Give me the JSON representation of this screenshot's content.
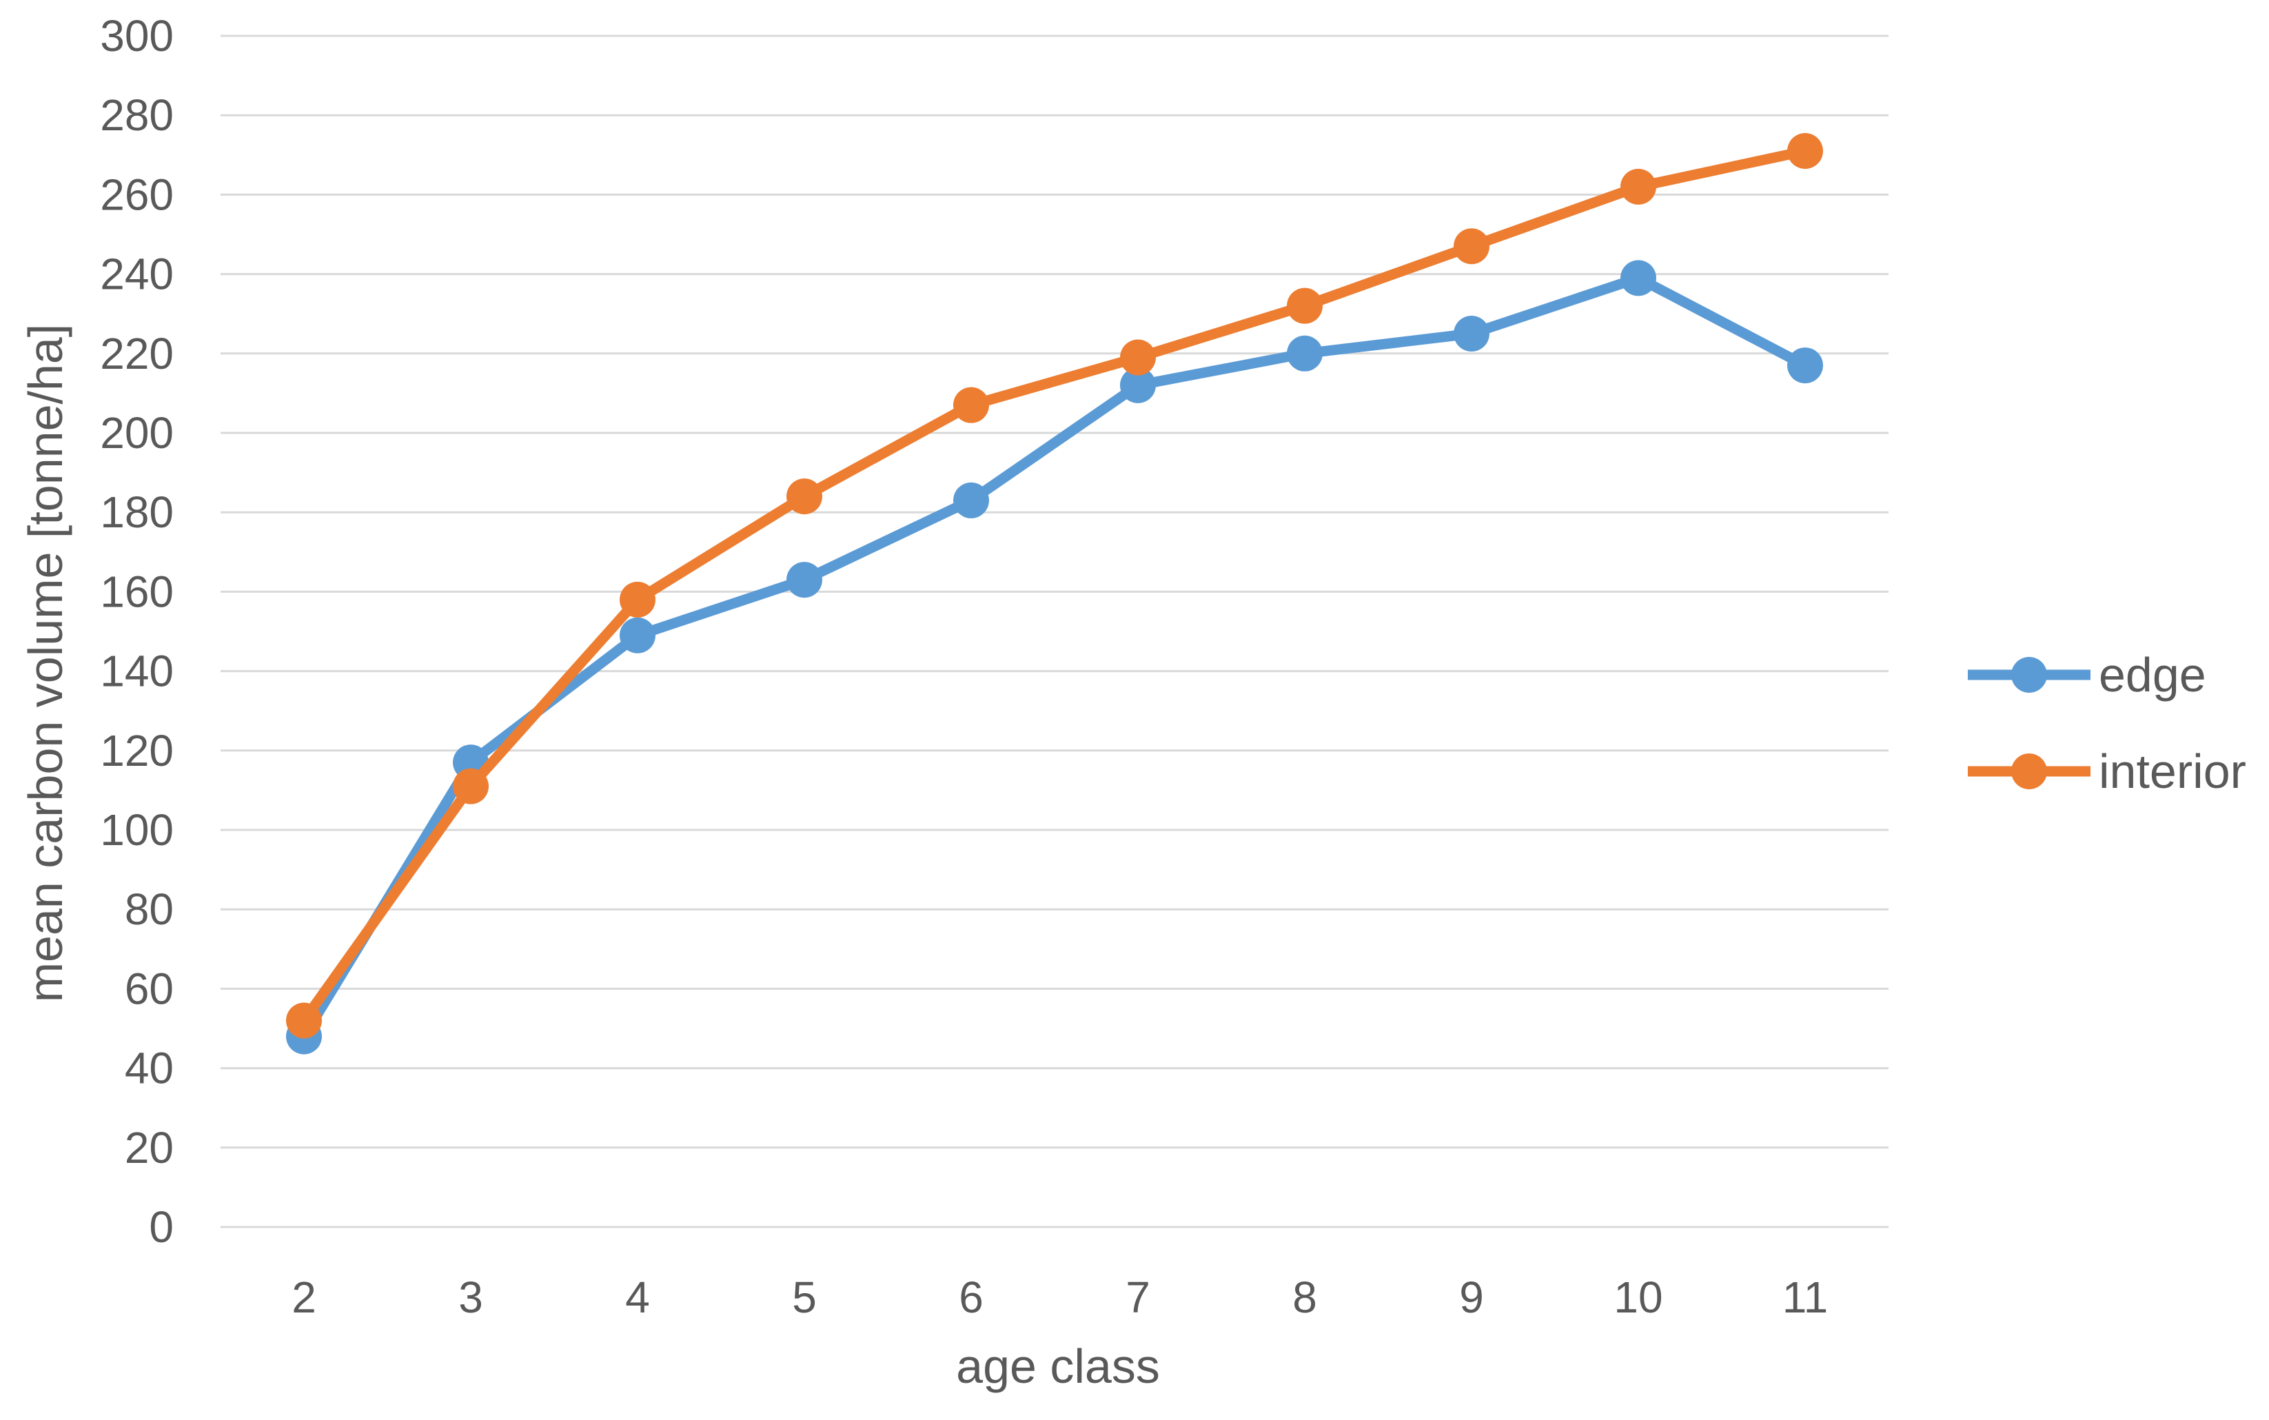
{
  "chart_data": {
    "type": "line",
    "title": "",
    "xlabel": "age class",
    "ylabel": "mean carbon volume [tonne/ha]",
    "categories": [
      "2",
      "3",
      "4",
      "5",
      "6",
      "7",
      "8",
      "9",
      "10",
      "11"
    ],
    "series": [
      {
        "name": "edge",
        "color": "#5B9BD5",
        "values": [
          48,
          117,
          149,
          163,
          183,
          212,
          220,
          225,
          239,
          217
        ]
      },
      {
        "name": "interior",
        "color": "#ED7D31",
        "values": [
          52,
          111,
          158,
          184,
          207,
          219,
          232,
          247,
          262,
          271
        ]
      }
    ],
    "ylim": [
      0,
      300
    ],
    "ytick_step": 20,
    "ytick_labels": [
      "0",
      "20",
      "40",
      "60",
      "80",
      "100",
      "120",
      "140",
      "160",
      "180",
      "200",
      "220",
      "240",
      "260",
      "280",
      "300"
    ],
    "grid": "horizontal",
    "legend_position": "right",
    "marker": "circle",
    "colors": {
      "text": "#595959",
      "gridline": "#D9D9D9",
      "background": "#FFFFFF"
    }
  }
}
